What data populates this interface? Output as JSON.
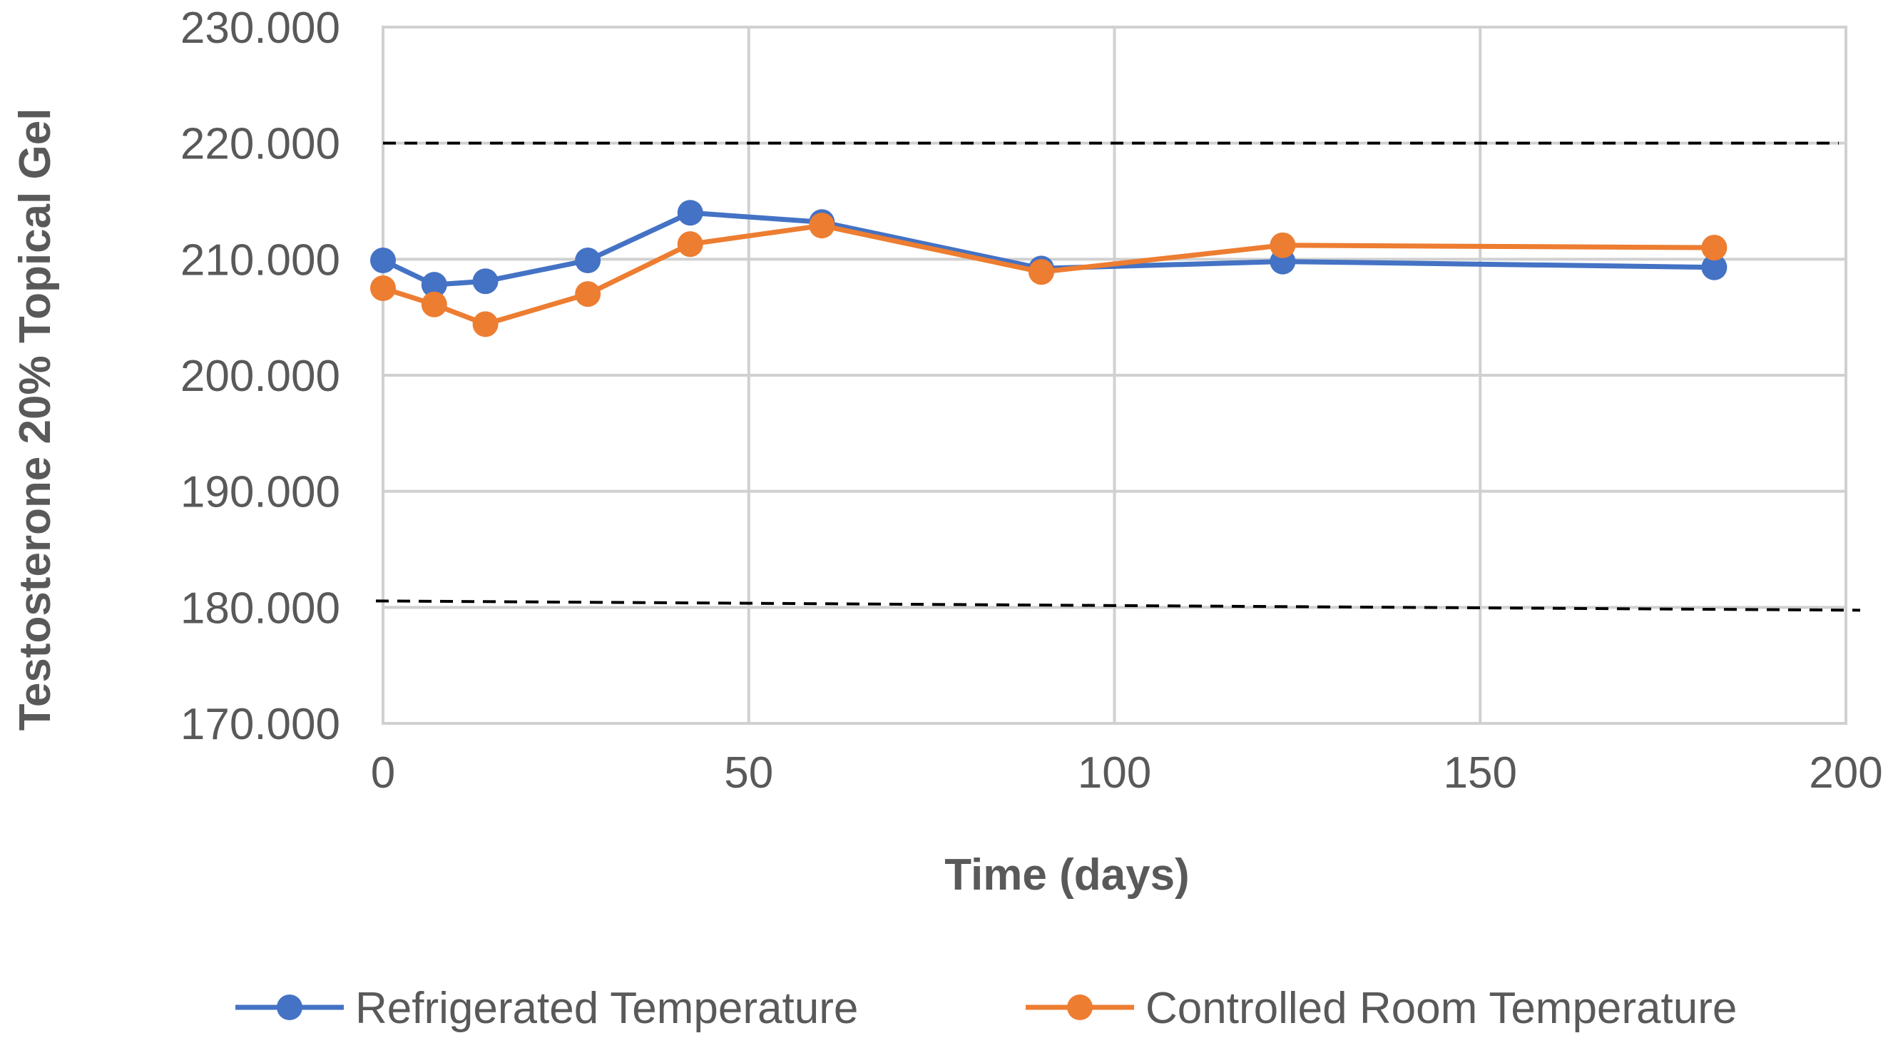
{
  "chart_data": {
    "type": "scatter",
    "title": "",
    "xlabel": "Time (days)",
    "ylabel": "Testosterone 20% Topical Gel",
    "xlim": [
      0,
      200
    ],
    "ylim": [
      170,
      230
    ],
    "x_ticks": [
      0,
      50,
      100,
      150,
      200
    ],
    "x_tick_labels": [
      "0",
      "50",
      "100",
      "150",
      "200"
    ],
    "y_ticks": [
      170,
      180,
      190,
      200,
      210,
      220,
      230
    ],
    "y_tick_labels": [
      "170.000",
      "180.000",
      "190.000",
      "200.000",
      "210.000",
      "220.000",
      "230.000"
    ],
    "grid": true,
    "legend_position": "bottom",
    "reference_lines": [
      {
        "name": "upper-limit",
        "y": 220,
        "style": "dashed",
        "color": "#000000"
      },
      {
        "name": "lower-limit",
        "y": 180,
        "style": "dashed",
        "color": "#000000"
      }
    ],
    "series": [
      {
        "name": "Refrigerated Temperature",
        "color": "#4472c4",
        "x": [
          0,
          7,
          14,
          28,
          42,
          60,
          90,
          123,
          182
        ],
        "y": [
          209.9,
          207.8,
          208.1,
          209.9,
          214.0,
          213.2,
          209.2,
          209.8,
          209.3
        ]
      },
      {
        "name": "Controlled Room Temperature",
        "color": "#ed7d31",
        "x": [
          0,
          7,
          14,
          28,
          42,
          60,
          90,
          123,
          182
        ],
        "y": [
          207.5,
          206.1,
          204.4,
          207.0,
          211.3,
          212.9,
          208.9,
          211.2,
          211.0
        ]
      }
    ]
  }
}
